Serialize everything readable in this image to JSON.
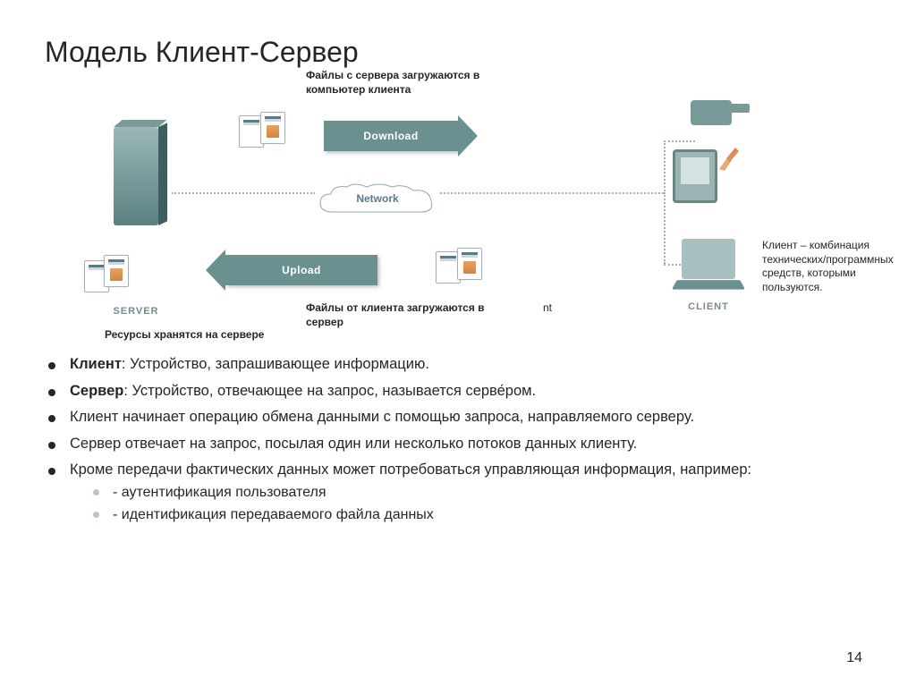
{
  "title": "Модель Клиент-Сервер",
  "pageNumber": "14",
  "colors": {
    "arrow": "#6b9090",
    "text": "#262626",
    "label": "#7a8a90",
    "dotted": "#9fb4b4"
  },
  "diagram": {
    "annotations": {
      "filesFromServer": "Файлы с сервера загружаются в компьютер клиента",
      "clientDesc": "Клиент – комбинация технических/программных средств, которыми пользуются.",
      "filesFromClient": "Файлы от клиента загружаются в сервер",
      "resourcesStored": "Ресурсы хранятся на сервере"
    },
    "labels": {
      "server": "SERVER",
      "client": "CLIENT",
      "download": "Download",
      "upload": "Upload",
      "network": "Network"
    },
    "hiddenLabel": "nt"
  },
  "bullets": [
    {
      "bold": "Клиент",
      "rest": ": Устройство, запрашивающее информацию."
    },
    {
      "bold": "Сервер",
      "rest": ": Устройство, отвечающее на запрос, называется серве́ром."
    },
    {
      "text": "Клиент начинает операцию обмена данными с помощью запроса, направляемого серверу."
    },
    {
      "text": "Сервер отвечает на запрос, посылая один или несколько потоков данных клиенту."
    },
    {
      "text": "Кроме передачи фактических данных может потребоваться управляющая информация, например:",
      "sub": [
        "- аутентификация пользователя",
        "- идентификация передаваемого файла данных"
      ]
    }
  ]
}
